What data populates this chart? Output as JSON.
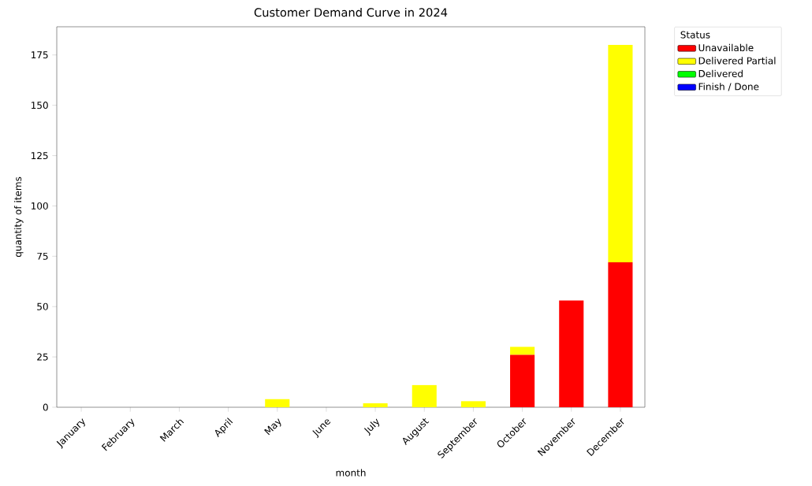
{
  "chart_data": {
    "type": "bar",
    "title": "Customer Demand Curve in 2024",
    "xlabel": "month",
    "ylabel": "quantity of items",
    "legend_title": "Status",
    "categories": [
      "January",
      "February",
      "March",
      "April",
      "May",
      "June",
      "July",
      "August",
      "September",
      "October",
      "November",
      "December"
    ],
    "stacked": true,
    "legend": "top right",
    "ylim": [
      0,
      189
    ],
    "yticks": [
      0,
      25,
      50,
      75,
      100,
      125,
      150,
      175
    ],
    "series": [
      {
        "name": "Unavailable",
        "color": "#ff0000",
        "values": [
          0,
          0,
          0,
          0,
          0,
          0,
          0,
          0,
          0,
          26,
          53,
          72
        ]
      },
      {
        "name": "Delivered Partial",
        "color": "#ffff00",
        "values": [
          0,
          0,
          0,
          0,
          4,
          0,
          2,
          11,
          3,
          4,
          0,
          108
        ]
      },
      {
        "name": "Delivered",
        "color": "#00ff00",
        "values": [
          0,
          0,
          0,
          0,
          0,
          0,
          0,
          0,
          0,
          0,
          0,
          0
        ]
      },
      {
        "name": "Finish / Done",
        "color": "#0000ff",
        "values": [
          0,
          0,
          0,
          0,
          0,
          0,
          0,
          0,
          0,
          0,
          0,
          0
        ]
      }
    ]
  }
}
